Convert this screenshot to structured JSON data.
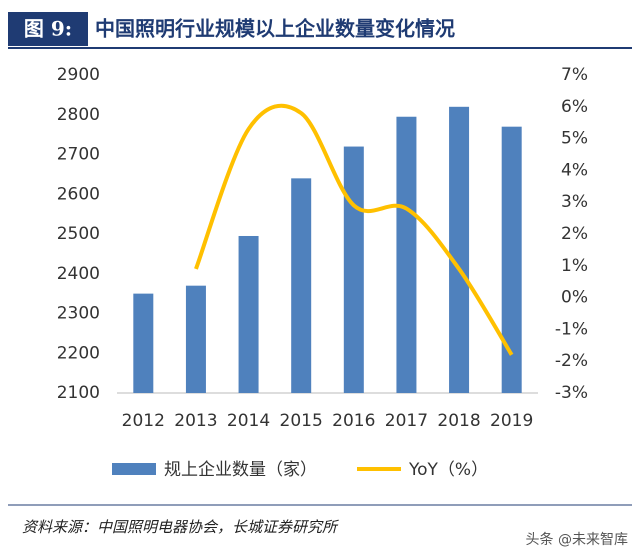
{
  "header": {
    "label": "图 9:",
    "title": "中国照明行业规模以上企业数量变化情况"
  },
  "chart_data": {
    "type": "combo",
    "categories": [
      "2012",
      "2013",
      "2014",
      "2015",
      "2016",
      "2017",
      "2018",
      "2019"
    ],
    "series": [
      {
        "name": "规上企业数量（家）",
        "type": "bar",
        "color": "#4f81bd",
        "values": [
          2350,
          2370,
          2495,
          2640,
          2720,
          2795,
          2820,
          2770
        ]
      },
      {
        "name": "YoY（%）",
        "type": "line",
        "axis": "y2",
        "color": "#ffc000",
        "values": [
          null,
          0.9,
          5.3,
          5.8,
          2.9,
          2.8,
          0.9,
          -1.8
        ]
      }
    ],
    "ylim": [
      2100,
      2900
    ],
    "yticks": [
      2100,
      2200,
      2300,
      2400,
      2500,
      2600,
      2700,
      2800,
      2900
    ],
    "y2lim": [
      -3,
      7
    ],
    "y2ticks": [
      {
        "value": -3,
        "label": "-3%"
      },
      {
        "value": -2,
        "label": "-2%"
      },
      {
        "value": -1,
        "label": "-1%"
      },
      {
        "value": 0,
        "label": "0%"
      },
      {
        "value": 1,
        "label": "1%"
      },
      {
        "value": 2,
        "label": "2%"
      },
      {
        "value": 3,
        "label": "3%"
      },
      {
        "value": 4,
        "label": "4%"
      },
      {
        "value": 5,
        "label": "5%"
      },
      {
        "value": 6,
        "label": "6%"
      },
      {
        "value": 7,
        "label": "7%"
      }
    ],
    "grid": false,
    "legend": "bottom"
  },
  "footer": {
    "source": "资料来源：中国照明电器协会，长城证券研究所",
    "watermark": "头条 @未来智库"
  }
}
